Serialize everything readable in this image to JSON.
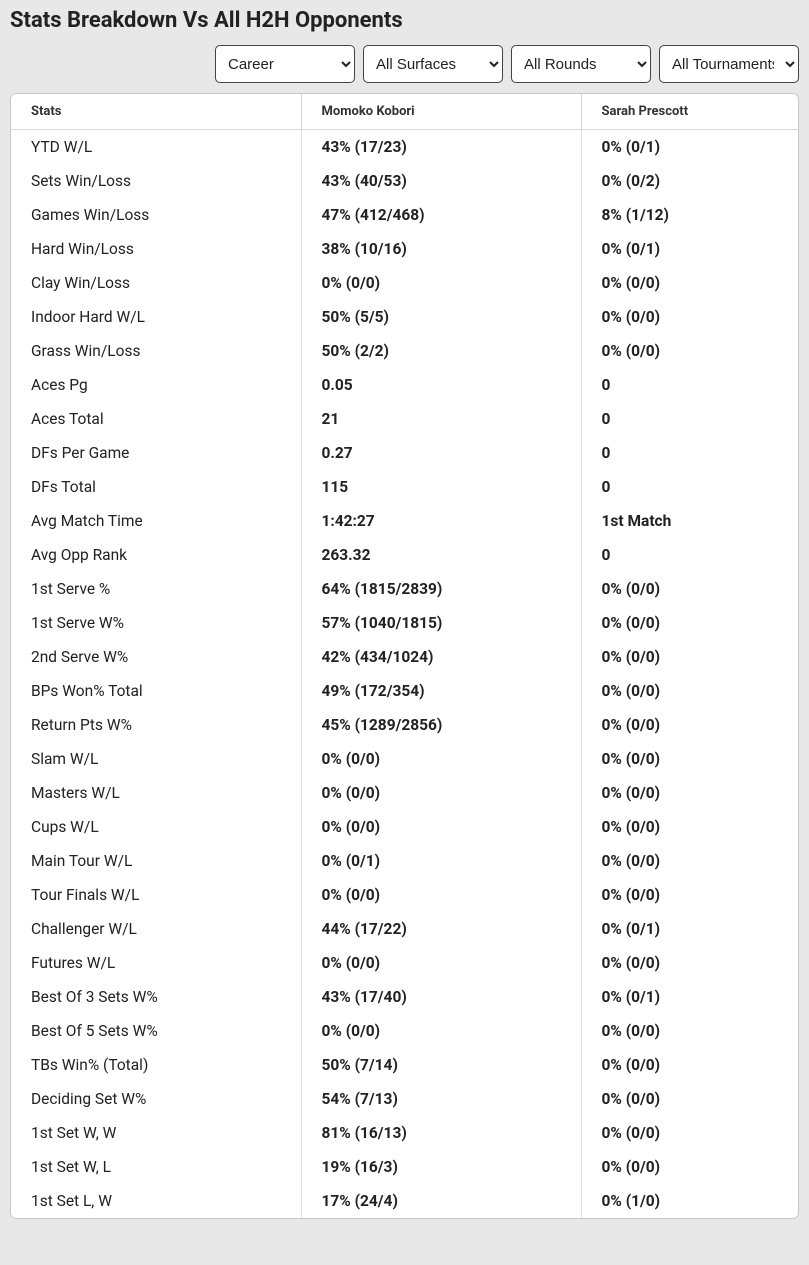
{
  "title": "Stats Breakdown Vs All H2H Opponents",
  "filters": {
    "period": "Career",
    "surface": "All Surfaces",
    "round": "All Rounds",
    "tournament": "All Tournaments"
  },
  "table": {
    "columns": [
      "Stats",
      "Momoko Kobori",
      "Sarah Prescott"
    ],
    "rows": [
      [
        "YTD W/L",
        "43% (17/23)",
        "0% (0/1)"
      ],
      [
        "Sets Win/Loss",
        "43% (40/53)",
        "0% (0/2)"
      ],
      [
        "Games Win/Loss",
        "47% (412/468)",
        "8% (1/12)"
      ],
      [
        "Hard Win/Loss",
        "38% (10/16)",
        "0% (0/1)"
      ],
      [
        "Clay Win/Loss",
        "0% (0/0)",
        "0% (0/0)"
      ],
      [
        "Indoor Hard W/L",
        "50% (5/5)",
        "0% (0/0)"
      ],
      [
        "Grass Win/Loss",
        "50% (2/2)",
        "0% (0/0)"
      ],
      [
        "Aces Pg",
        "0.05",
        "0"
      ],
      [
        "Aces Total",
        "21",
        "0"
      ],
      [
        "DFs Per Game",
        "0.27",
        "0"
      ],
      [
        "DFs Total",
        "115",
        "0"
      ],
      [
        "Avg Match Time",
        "1:42:27",
        "1st Match"
      ],
      [
        "Avg Opp Rank",
        "263.32",
        "0"
      ],
      [
        "1st Serve %",
        "64% (1815/2839)",
        "0% (0/0)"
      ],
      [
        "1st Serve W%",
        "57% (1040/1815)",
        "0% (0/0)"
      ],
      [
        "2nd Serve W%",
        "42% (434/1024)",
        "0% (0/0)"
      ],
      [
        "BPs Won% Total",
        "49% (172/354)",
        "0% (0/0)"
      ],
      [
        "Return Pts W%",
        "45% (1289/2856)",
        "0% (0/0)"
      ],
      [
        "Slam W/L",
        "0% (0/0)",
        "0% (0/0)"
      ],
      [
        "Masters W/L",
        "0% (0/0)",
        "0% (0/0)"
      ],
      [
        "Cups W/L",
        "0% (0/0)",
        "0% (0/0)"
      ],
      [
        "Main Tour W/L",
        "0% (0/1)",
        "0% (0/0)"
      ],
      [
        "Tour Finals W/L",
        "0% (0/0)",
        "0% (0/0)"
      ],
      [
        "Challenger W/L",
        "44% (17/22)",
        "0% (0/1)"
      ],
      [
        "Futures W/L",
        "0% (0/0)",
        "0% (0/0)"
      ],
      [
        "Best Of 3 Sets W%",
        "43% (17/40)",
        "0% (0/1)"
      ],
      [
        "Best Of 5 Sets W%",
        "0% (0/0)",
        "0% (0/0)"
      ],
      [
        "TBs Win% (Total)",
        "50% (7/14)",
        "0% (0/0)"
      ],
      [
        "Deciding Set W%",
        "54% (7/13)",
        "0% (0/0)"
      ],
      [
        "1st Set W, W",
        "81% (16/13)",
        "0% (0/0)"
      ],
      [
        "1st Set W, L",
        "19% (16/3)",
        "0% (0/0)"
      ],
      [
        "1st Set L, W",
        "17% (24/4)",
        "0% (1/0)"
      ]
    ]
  },
  "styling": {
    "background_color": "#e8e8e8",
    "table_background": "#ffffff",
    "border_color": "#c8c8c8",
    "header_text_color": "#333333",
    "cell_text_color": "#222222",
    "title_fontsize": 22,
    "header_fontsize": 13,
    "cell_fontsize": 15.5,
    "col1_fontweight": 400,
    "col23_fontweight": 700
  }
}
